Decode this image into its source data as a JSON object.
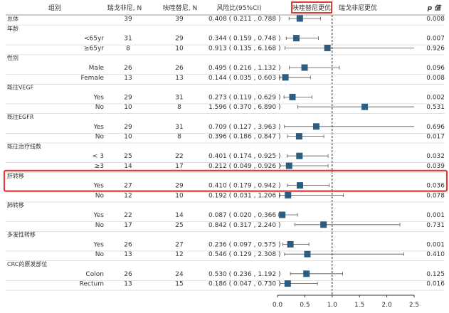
{
  "headers": {
    "subgroup": "组别",
    "n_regorafenib": "瑞戈非尼, N",
    "n_fruquintinib": "呋喹替尼, N",
    "hr": "风险比(95%CI)",
    "favors_left": "呋喹替尼更优",
    "favors_right": "瑞戈非尼更优",
    "p": "p 值"
  },
  "colors": {
    "text": "#333333",
    "marker": "#2E5C7E",
    "ci_line": "#555555",
    "grid": "#cfcfcf",
    "highlight": "#E53935"
  },
  "highlighted_group": "肝转移",
  "chart_data": {
    "type": "forest",
    "xlim": [
      0,
      2.5
    ],
    "x_ticks": [
      "0.0",
      "0.5",
      "1.0",
      "1.5",
      "2.0",
      "2.5"
    ],
    "reference_line": 1.0,
    "rows": [
      {
        "kind": "overall",
        "label": "总体",
        "n1": "39",
        "n2": "39",
        "hr_text": "0.408 ( 0.211 , 0.788 )",
        "hr": 0.408,
        "lo": 0.211,
        "hi": 0.788,
        "p": "0.008"
      },
      {
        "kind": "group",
        "label": "年龄"
      },
      {
        "kind": "sub",
        "label": "<65yr",
        "n1": "31",
        "n2": "29",
        "hr_text": "0.344 ( 0.159 , 0.748 )",
        "hr": 0.344,
        "lo": 0.159,
        "hi": 0.748,
        "p": "0.007"
      },
      {
        "kind": "sub",
        "label": "≥65yr",
        "n1": "8",
        "n2": "10",
        "hr_text": "0.913 ( 0.135 , 6.168 )",
        "hr": 0.913,
        "lo": 0.135,
        "hi": 6.168,
        "p": "0.926"
      },
      {
        "kind": "group",
        "label": "性别"
      },
      {
        "kind": "sub",
        "label": "Male",
        "n1": "26",
        "n2": "26",
        "hr_text": "0.495 ( 0.216 , 1.132 )",
        "hr": 0.495,
        "lo": 0.216,
        "hi": 1.132,
        "p": "0.096"
      },
      {
        "kind": "sub",
        "label": "Female",
        "n1": "13",
        "n2": "13",
        "hr_text": "0.144 ( 0.035 , 0.603 )",
        "hr": 0.144,
        "lo": 0.035,
        "hi": 0.603,
        "p": "0.008"
      },
      {
        "kind": "group",
        "label": "既往VEGF"
      },
      {
        "kind": "sub",
        "label": "Yes",
        "n1": "29",
        "n2": "31",
        "hr_text": "0.273 ( 0.119 , 0.629 )",
        "hr": 0.273,
        "lo": 0.119,
        "hi": 0.629,
        "p": "0.002"
      },
      {
        "kind": "sub",
        "label": "No",
        "n1": "10",
        "n2": "8",
        "hr_text": "1.596 ( 0.370 , 6.890 )",
        "hr": 1.596,
        "lo": 0.37,
        "hi": 6.89,
        "p": "0.531"
      },
      {
        "kind": "group",
        "label": "既往EGFR"
      },
      {
        "kind": "sub",
        "label": "Yes",
        "n1": "29",
        "n2": "31",
        "hr_text": "0.709 ( 0.127 , 3.963 )",
        "hr": 0.709,
        "lo": 0.127,
        "hi": 3.963,
        "p": "0.696"
      },
      {
        "kind": "sub",
        "label": "No",
        "n1": "10",
        "n2": "8",
        "hr_text": "0.396 ( 0.186 , 0.847 )",
        "hr": 0.396,
        "lo": 0.186,
        "hi": 0.847,
        "p": "0.017"
      },
      {
        "kind": "group",
        "label": "既往治疗线数"
      },
      {
        "kind": "sub",
        "label": "< 3",
        "n1": "25",
        "n2": "22",
        "hr_text": "0.401 ( 0.174 , 0.925 )",
        "hr": 0.401,
        "lo": 0.174,
        "hi": 0.925,
        "p": "0.032"
      },
      {
        "kind": "sub",
        "label": "≥3",
        "n1": "14",
        "n2": "17",
        "hr_text": "0.212 ( 0.049 , 0.926 )",
        "hr": 0.212,
        "lo": 0.049,
        "hi": 0.926,
        "p": "0.039"
      },
      {
        "kind": "group",
        "label": "肝转移"
      },
      {
        "kind": "sub",
        "label": "Yes",
        "n1": "27",
        "n2": "29",
        "hr_text": "0.410 ( 0.179 , 0.942 )",
        "hr": 0.41,
        "lo": 0.179,
        "hi": 0.942,
        "p": "0.036"
      },
      {
        "kind": "sub",
        "label": "No",
        "n1": "12",
        "n2": "10",
        "hr_text": "0.192 ( 0.031 , 1.206 )",
        "hr": 0.192,
        "lo": 0.031,
        "hi": 1.206,
        "p": "0.078"
      },
      {
        "kind": "group",
        "label": "肺转移"
      },
      {
        "kind": "sub",
        "label": "Yes",
        "n1": "22",
        "n2": "14",
        "hr_text": "0.087 ( 0.020 , 0.366 )",
        "hr": 0.087,
        "lo": 0.02,
        "hi": 0.366,
        "p": "0.001"
      },
      {
        "kind": "sub",
        "label": "No",
        "n1": "17",
        "n2": "25",
        "hr_text": "0.842 ( 0.317 , 2.240 )",
        "hr": 0.842,
        "lo": 0.317,
        "hi": 2.24,
        "p": "0.731"
      },
      {
        "kind": "group",
        "label": "多发性转移"
      },
      {
        "kind": "sub",
        "label": "Yes",
        "n1": "26",
        "n2": "27",
        "hr_text": "0.236 ( 0.097 , 0.575 )",
        "hr": 0.236,
        "lo": 0.097,
        "hi": 0.575,
        "p": "0.001"
      },
      {
        "kind": "sub",
        "label": "No",
        "n1": "13",
        "n2": "12",
        "hr_text": "0.546 ( 0.129 , 2.308 )",
        "hr": 0.546,
        "lo": 0.129,
        "hi": 2.308,
        "p": "0.410"
      },
      {
        "kind": "group",
        "label": "CRC的原发部位"
      },
      {
        "kind": "sub",
        "label": "Colon",
        "n1": "26",
        "n2": "24",
        "hr_text": "0.530 ( 0.236 , 1.192 )",
        "hr": 0.53,
        "lo": 0.236,
        "hi": 1.192,
        "p": "0.125"
      },
      {
        "kind": "sub",
        "label": "Rectum",
        "n1": "13",
        "n2": "15",
        "hr_text": "0.186 ( 0.047 , 0.730 )",
        "hr": 0.186,
        "lo": 0.047,
        "hi": 0.73,
        "p": "0.016"
      }
    ]
  }
}
